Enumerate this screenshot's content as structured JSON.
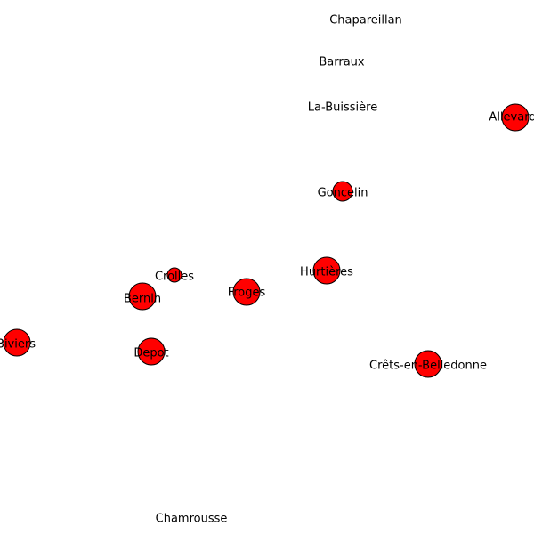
{
  "map": {
    "marker_color": "#ff0000",
    "marker_stroke": "#000000",
    "places": [
      {
        "name": "Chapareillan",
        "marker": false
      },
      {
        "name": "Barraux",
        "marker": false
      },
      {
        "name": "La-Buissière",
        "marker": false
      },
      {
        "name": "Allevard",
        "marker": true,
        "size": "large"
      },
      {
        "name": "Goncelin",
        "marker": true,
        "size": "medium"
      },
      {
        "name": "Hurtières",
        "marker": true,
        "size": "large"
      },
      {
        "name": "Crolles",
        "marker": true,
        "size": "small"
      },
      {
        "name": "Bernin",
        "marker": true,
        "size": "large"
      },
      {
        "name": "Froges",
        "marker": true,
        "size": "large"
      },
      {
        "name": "Biviers",
        "marker": true,
        "size": "large"
      },
      {
        "name": "Depot",
        "marker": true,
        "size": "large"
      },
      {
        "name": "Crêts-en-Belledonne",
        "marker": true,
        "size": "large"
      },
      {
        "name": "Chamrousse",
        "marker": false
      }
    ]
  }
}
